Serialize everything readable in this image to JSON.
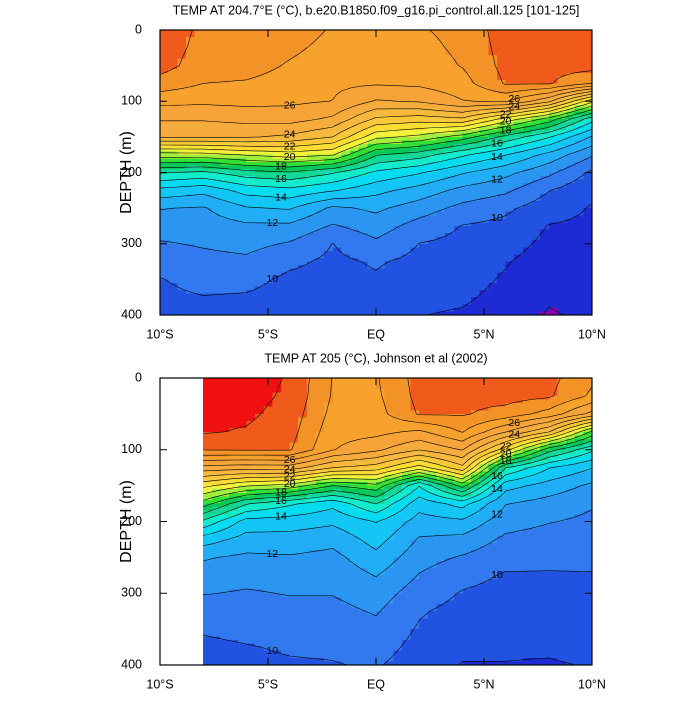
{
  "chart_data": [
    {
      "type": "contour",
      "title": "TEMP AT 204.7°E (°C), b.e20.B1850.f09_g16.pi_control.all.125 [101-125]",
      "y_label": "DEPTH (m)",
      "x": [
        -10,
        -8,
        -6,
        -4,
        -2,
        0,
        2,
        4,
        6,
        8,
        10
      ],
      "y": [
        0,
        25,
        50,
        75,
        100,
        125,
        150,
        175,
        200,
        225,
        250,
        275,
        300,
        325,
        350,
        375,
        400
      ],
      "z": [
        [
          28.6,
          27.8,
          27.6,
          27.5,
          26.9,
          26.8,
          26.9,
          27.3,
          28.5,
          28.6,
          28.6
        ],
        [
          28.5,
          27.7,
          27.5,
          27.2,
          26.7,
          26.6,
          26.7,
          27.2,
          28.4,
          28.5,
          28.5
        ],
        [
          28.4,
          27.5,
          27.4,
          26.9,
          26.5,
          26.4,
          26.5,
          27.05,
          28.3,
          28.35,
          28.4
        ],
        [
          27.6,
          27.0,
          26.9,
          26.6,
          26.2,
          26.1,
          26.2,
          26.6,
          28.1,
          28.1,
          27.0
        ],
        [
          26.3,
          26.2,
          26.3,
          26.2,
          25.98,
          24.9,
          25.1,
          25.95,
          26.1,
          24.2,
          20.3
        ],
        [
          25.1,
          25.1,
          25.3,
          25.4,
          24.8,
          22.8,
          22.5,
          22.8,
          20.6,
          18.6,
          15.4
        ],
        [
          24.1,
          24.1,
          24.1,
          23.8,
          23.0,
          20.3,
          19.7,
          18.5,
          16.7,
          15.1,
          12.9
        ],
        [
          19.5,
          19.6,
          20.1,
          20.5,
          20.1,
          17.1,
          16.5,
          15.2,
          14.05,
          12.7,
          11.1
        ],
        [
          16.1,
          15.8,
          16.6,
          16.9,
          16.1,
          14.8,
          14.1,
          13.1,
          12.3,
          11.25,
          9.8
        ],
        [
          13.7,
          13.3,
          14.4,
          14.7,
          14.1,
          13.3,
          12.6,
          11.7,
          11.2,
          10.05,
          9.2
        ],
        [
          12.05,
          11.9,
          12.9,
          13.1,
          11.8,
          12.2,
          11.5,
          10.7,
          10.2,
          9.45,
          8.93
        ],
        [
          11.5,
          11.5,
          11.8,
          11.8,
          10.9,
          11.5,
          10.6,
          9.96,
          9.73,
          8.96,
          8.8
        ],
        [
          10.9,
          11.1,
          11.3,
          10.9,
          9.98,
          10.8,
          9.98,
          9.75,
          9.4,
          8.75,
          8.7
        ],
        [
          10.4,
          10.7,
          10.8,
          10.2,
          9.8,
          10.1,
          9.75,
          9.54,
          9.07,
          8.54,
          8.6
        ],
        [
          9.96,
          10.3,
          10.3,
          9.8,
          9.7,
          9.9,
          9.5,
          9.33,
          8.9,
          8.33,
          8.5
        ],
        [
          9.8,
          9.97,
          9.9,
          9.6,
          9.5,
          9.7,
          9.25,
          9.13,
          8.75,
          8.13,
          8.35
        ],
        [
          9.6,
          9.8,
          9.7,
          9.4,
          9.3,
          9.5,
          9.02,
          8.9,
          8.6,
          7.9,
          8.2
        ]
      ],
      "levels": [
        8,
        9,
        10,
        11,
        12,
        13,
        14,
        15,
        16,
        17,
        18,
        19,
        20,
        21,
        22,
        23,
        24,
        25,
        26,
        27,
        28,
        29
      ],
      "colors": [
        "#8c00b4",
        "#1e2ad2",
        "#2252e2",
        "#3278ee",
        "#2a96f2",
        "#22aef6",
        "#14c6f6",
        "#06dcf0",
        "#12eccc",
        "#14d898",
        "#08c85a",
        "#34e034",
        "#a2ee3c",
        "#f2f23c",
        "#fadc34",
        "#f8c83a",
        "#f7b83e",
        "#f6ac3c",
        "#f6a43a",
        "#f8a22e",
        "#f39226",
        "#f05a1a",
        "#f01010"
      ],
      "labeled_levels": [
        10,
        12,
        14,
        16,
        18,
        20,
        22,
        24,
        26
      ],
      "xlim": [
        -10,
        10
      ],
      "xticks": [
        {
          "value": -10,
          "label": "10°S"
        },
        {
          "value": -5,
          "label": "5°S"
        },
        {
          "value": 0,
          "label": "EQ"
        },
        {
          "value": 5,
          "label": "5°N"
        },
        {
          "value": 10,
          "label": "10°N"
        }
      ],
      "ylim": [
        0,
        400
      ],
      "yticks": [
        0,
        100,
        200,
        300,
        400
      ],
      "y_reversed": true
    },
    {
      "type": "contour",
      "title": "TEMP AT 205 (°C), Johnson et al (2002)",
      "y_label": "DEPTH (m)",
      "x": [
        -10,
        -8,
        -6,
        -4,
        -2,
        0,
        2,
        4,
        6,
        8,
        10
      ],
      "y": [
        0,
        25,
        50,
        75,
        100,
        125,
        150,
        175,
        200,
        225,
        250,
        275,
        300,
        325,
        350,
        375,
        400
      ],
      "z": [
        [
          null,
          29.6,
          29.5,
          28.9,
          26.95,
          26.9,
          28.4,
          28.4,
          28.5,
          28.3,
          27.2
        ],
        [
          null,
          29.5,
          29.4,
          28.8,
          26.9,
          26.8,
          28.3,
          28.3,
          28.4,
          28.15,
          26.8
        ],
        [
          null,
          29.3,
          29.2,
          28.6,
          26.7,
          26.6,
          28.1,
          28.1,
          27.6,
          26.6,
          24.7
        ],
        [
          null,
          29.1,
          28.9,
          28.4,
          26.4,
          26.3,
          25.8,
          27.05,
          25.05,
          23.05,
          18.8
        ],
        [
          null,
          28.05,
          28.1,
          28.1,
          26.05,
          25.2,
          24.05,
          25.05,
          21.4,
          17.4,
          15.2
        ],
        [
          null,
          24.6,
          24.4,
          24.5,
          23.0,
          22.5,
          20.5,
          22.7,
          16.05,
          14.05,
          13.05
        ],
        [
          null,
          21.3,
          20.1,
          19.6,
          18.0,
          18.7,
          15.05,
          18.4,
          13.4,
          12.6,
          11.8
        ],
        [
          null,
          18.5,
          16.1,
          15.2,
          14.3,
          16.05,
          13.4,
          14.4,
          12.05,
          11.6,
          11.1
        ],
        [
          null,
          15.8,
          13.6,
          13.5,
          13.2,
          14.05,
          12.6,
          12.8,
          11.4,
          11.05,
          10.8
        ],
        [
          null,
          13.5,
          12.6,
          12.6,
          12.3,
          13.4,
          11.9,
          11.7,
          10.8,
          10.6,
          10.5
        ],
        [
          null,
          12.1,
          11.8,
          11.9,
          11.7,
          12.7,
          11.4,
          10.9,
          10.3,
          10.2,
          10.2
        ],
        [
          null,
          11.6,
          11.3,
          11.4,
          11.3,
          12.05,
          10.95,
          10.3,
          9.92,
          9.93,
          9.95
        ],
        [
          null,
          11.05,
          10.9,
          11.05,
          11.05,
          11.5,
          10.5,
          9.93,
          9.73,
          9.73,
          9.85
        ],
        [
          null,
          10.5,
          10.6,
          10.7,
          10.7,
          11.1,
          10.1,
          9.7,
          9.54,
          9.53,
          9.7
        ],
        [
          null,
          10.1,
          10.25,
          10.4,
          10.4,
          10.7,
          9.9,
          9.5,
          9.35,
          9.33,
          9.5
        ],
        [
          null,
          9.8,
          9.95,
          10.1,
          10.15,
          10.4,
          9.7,
          9.2,
          9.15,
          9.12,
          9.3
        ],
        [
          null,
          9.6,
          9.8,
          9.9,
          9.95,
          10.1,
          9.5,
          8.95,
          8.96,
          8.92,
          9.05
        ]
      ],
      "levels": [
        8,
        9,
        10,
        11,
        12,
        13,
        14,
        15,
        16,
        17,
        18,
        19,
        20,
        21,
        22,
        23,
        24,
        25,
        26,
        27,
        28,
        29
      ],
      "colors": [
        "#8c00b4",
        "#1e2ad2",
        "#2252e2",
        "#3278ee",
        "#2a96f2",
        "#22aef6",
        "#14c6f6",
        "#06dcf0",
        "#12eccc",
        "#14d898",
        "#08c85a",
        "#34e034",
        "#a2ee3c",
        "#f2f23c",
        "#fadc34",
        "#f8c83a",
        "#f7b83e",
        "#f6ac3c",
        "#f6a43a",
        "#f8a22e",
        "#f39226",
        "#f05a1a",
        "#f01010"
      ],
      "labeled_levels": [
        10,
        12,
        14,
        16,
        18,
        20,
        22,
        24,
        26
      ],
      "xlim": [
        -10,
        10
      ],
      "xticks": [
        {
          "value": -10,
          "label": "10°S"
        },
        {
          "value": -5,
          "label": "5°S"
        },
        {
          "value": 0,
          "label": "EQ"
        },
        {
          "value": 5,
          "label": "5°N"
        },
        {
          "value": 10,
          "label": "10°N"
        }
      ],
      "ylim": [
        0,
        400
      ],
      "yticks": [
        0,
        100,
        200,
        300,
        400
      ],
      "y_reversed": true
    }
  ]
}
